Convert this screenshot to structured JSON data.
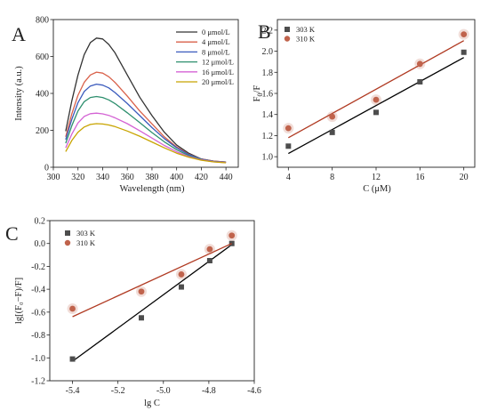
{
  "chart_data": [
    {
      "panel_label": "A",
      "type": "line",
      "xlabel": "Wavelength (nm)",
      "ylabel": "Intensity (a.u.)",
      "xlim": [
        300,
        450
      ],
      "ylim": [
        0,
        800
      ],
      "xticks": [
        300,
        320,
        340,
        360,
        380,
        400,
        420,
        440
      ],
      "yticks": [
        0,
        200,
        400,
        600,
        800
      ],
      "legend": "top-right",
      "x": [
        310,
        315,
        320,
        325,
        330,
        335,
        340,
        345,
        350,
        360,
        370,
        380,
        390,
        400,
        410,
        420,
        430,
        440
      ],
      "series": [
        {
          "name": "0 μmol/L",
          "color": "#333333",
          "values": [
            195,
            360,
            500,
            610,
            675,
            700,
            695,
            665,
            620,
            500,
            380,
            280,
            190,
            120,
            75,
            45,
            33,
            28
          ]
        },
        {
          "name": "4 μmol/L",
          "color": "#d9614a",
          "values": [
            165,
            290,
            390,
            460,
            500,
            515,
            510,
            490,
            460,
            385,
            305,
            235,
            165,
            110,
            70,
            45,
            33,
            28
          ]
        },
        {
          "name": "8 μmol/L",
          "color": "#3b5bbd",
          "values": [
            150,
            260,
            350,
            410,
            440,
            450,
            445,
            430,
            405,
            345,
            280,
            215,
            155,
            105,
            68,
            44,
            32,
            27
          ]
        },
        {
          "name": "12 μmol/L",
          "color": "#2e8f6e",
          "values": [
            130,
            225,
            305,
            355,
            378,
            383,
            378,
            365,
            345,
            295,
            242,
            188,
            138,
            95,
            62,
            42,
            31,
            26
          ]
        },
        {
          "name": "16 μmol/L",
          "color": "#d463d4",
          "values": [
            105,
            180,
            240,
            275,
            290,
            293,
            289,
            281,
            268,
            236,
            198,
            158,
            118,
            84,
            58,
            40,
            30,
            25
          ]
        },
        {
          "name": "20 μmol/L",
          "color": "#c8a400",
          "values": [
            85,
            145,
            190,
            218,
            232,
            236,
            234,
            229,
            220,
            196,
            168,
            137,
            105,
            76,
            54,
            38,
            29,
            24
          ]
        }
      ]
    },
    {
      "panel_label": "B",
      "type": "scatter",
      "xlabel": "C (μM)",
      "ylabel_main": "F",
      "ylabel_sub": "0",
      "ylabel_tail": "/F",
      "xlim": [
        3,
        21
      ],
      "ylim": [
        0.9,
        2.3
      ],
      "xticks": [
        4,
        8,
        12,
        16,
        20
      ],
      "yticks": [
        1.0,
        1.2,
        1.4,
        1.6,
        1.8,
        2.0,
        2.2
      ],
      "legend": "top-left",
      "series": [
        {
          "name": "303 K",
          "color": "#4d4d4d",
          "fit_color": "#000000",
          "marker": "square",
          "x": [
            4,
            8,
            12,
            16,
            20
          ],
          "values": [
            1.1,
            1.23,
            1.42,
            1.71,
            1.99
          ],
          "fit": [
            1.03,
            1.94
          ]
        },
        {
          "name": "310 K",
          "color": "#c0634c",
          "fit_color": "#b03a22",
          "marker": "circle",
          "x": [
            4,
            8,
            12,
            16,
            20
          ],
          "values": [
            1.27,
            1.38,
            1.54,
            1.88,
            2.16
          ],
          "fit": [
            1.18,
            2.1
          ]
        }
      ]
    },
    {
      "panel_label": "C",
      "type": "scatter",
      "xlabel": "lg C",
      "ylabel": "lg[(F₀−F)/F]",
      "xlim": [
        -5.5,
        -4.6
      ],
      "ylim": [
        -1.2,
        0.2
      ],
      "xticks": [
        -5.4,
        -5.2,
        -5.0,
        -4.8,
        -4.6
      ],
      "yticks": [
        -1.2,
        -1.0,
        -0.8,
        -0.6,
        -0.4,
        -0.2,
        0.0,
        0.2
      ],
      "legend": "top-left",
      "series": [
        {
          "name": "303 K",
          "color": "#4d4d4d",
          "fit_color": "#000000",
          "marker": "square",
          "x": [
            -5.4,
            -5.097,
            -4.921,
            -4.796,
            -4.699
          ],
          "values": [
            -1.01,
            -0.65,
            -0.38,
            -0.15,
            0.0
          ],
          "fit": [
            -1.03,
            -0.01
          ]
        },
        {
          "name": "310 K",
          "color": "#c0634c",
          "fit_color": "#b03a22",
          "marker": "circle",
          "x": [
            -5.4,
            -5.097,
            -4.921,
            -4.796,
            -4.699
          ],
          "values": [
            -0.57,
            -0.42,
            -0.27,
            -0.05,
            0.07
          ],
          "fit": [
            -0.64,
            0.0
          ]
        }
      ]
    }
  ]
}
